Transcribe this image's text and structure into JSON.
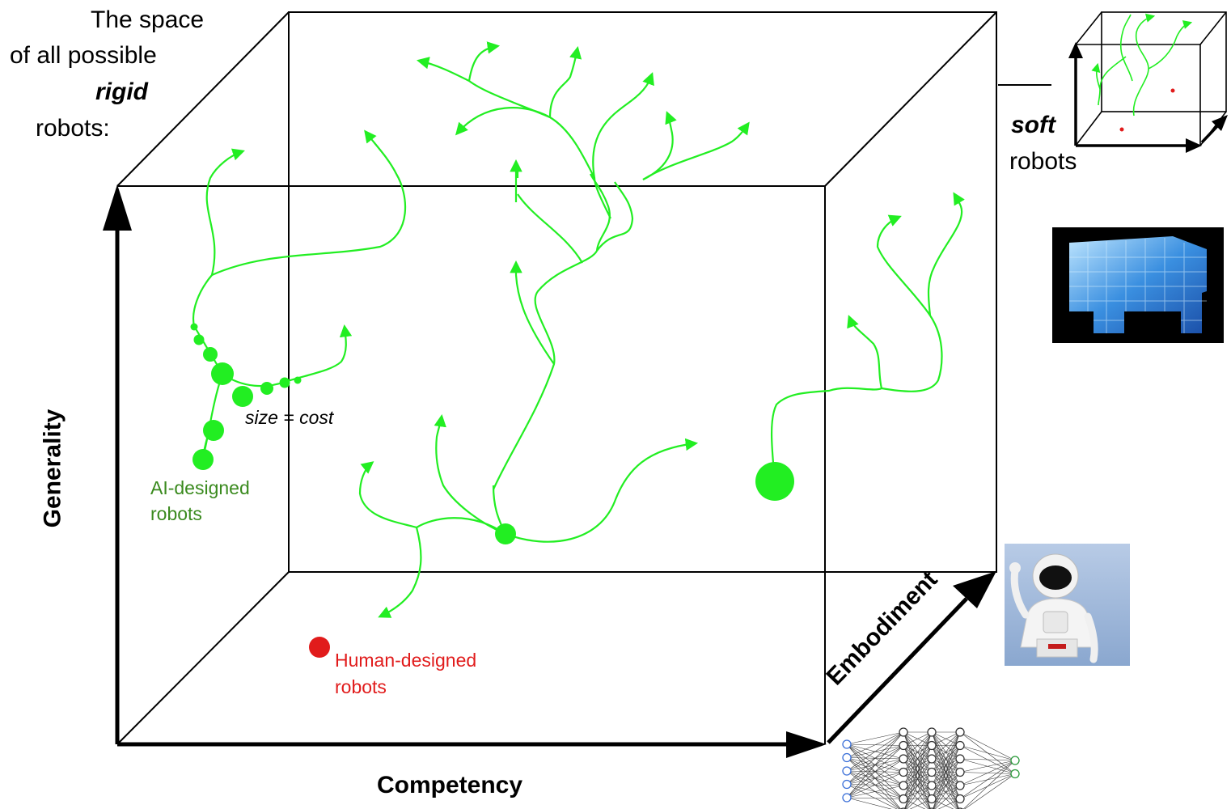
{
  "intro": {
    "line1": "The space",
    "line2": "of all possible",
    "emphasis": "rigid",
    "line4": "robots:"
  },
  "soft_inset": {
    "emphasis": "soft",
    "label": "robots"
  },
  "axes": {
    "y": "Generality",
    "x": "Competency",
    "z": "Embodiment"
  },
  "annotations": {
    "ai_line1": "AI-designed",
    "ai_line2": "robots",
    "human_line1": "Human-designed",
    "human_line2": "robots",
    "size_note": "size = cost"
  },
  "colors": {
    "lineage": "#22ee22",
    "ai_label": "#3a8a1e",
    "human": "#e11b1b",
    "axis": "#000000"
  },
  "images": {
    "soft_robot": "blue-soft-voxel-robot-photo",
    "humanoid": "asimo-humanoid-photo",
    "network": "neural-network-icon"
  }
}
